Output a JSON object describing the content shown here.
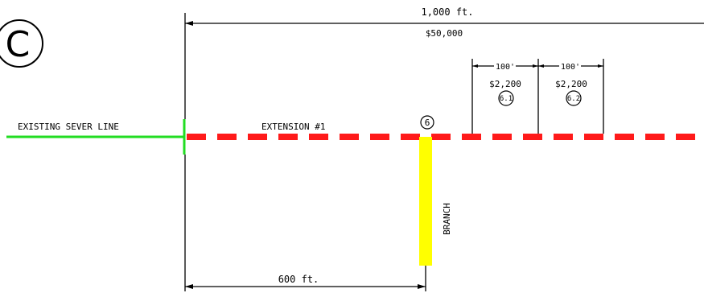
{
  "sheet_marker": "C",
  "total_length": "1,000 ft.",
  "total_cost": "$50,000",
  "existing_line_label": "EXISTING SEVER LINE",
  "extension_label": "EXTENSION #1",
  "branch_node_id": "6",
  "branch_label": "BRANCH",
  "branch_offset": "600 ft.",
  "segments": [
    {
      "length": "100'",
      "cost": "$2,200",
      "id": "6.1"
    },
    {
      "length": "100'",
      "cost": "$2,200",
      "id": "6.2"
    }
  ],
  "colors": {
    "existing_line": "#22dd22",
    "extension_line": "#ff1a1a",
    "branch_line": "#ffff00",
    "dimension_line": "#000000"
  }
}
